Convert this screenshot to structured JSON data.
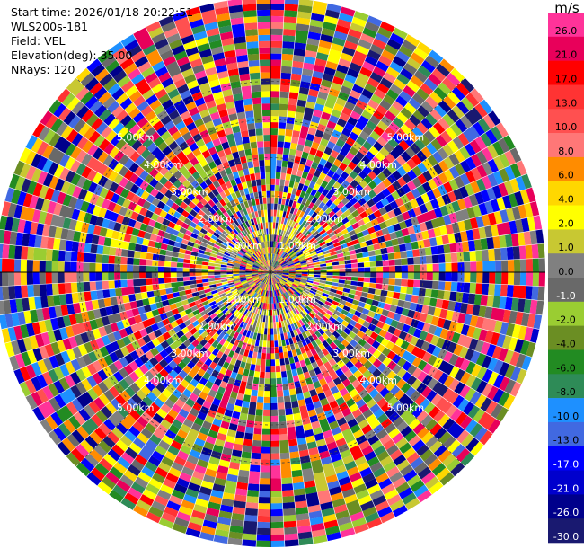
{
  "info": {
    "start_time_label": "Start time:",
    "start_time": "2026/01/18 20:22:51",
    "instrument": "WLS200s-181",
    "field_label": "Field:",
    "field": "VEL",
    "elevation_label": "Elevation(deg):",
    "elevation": "35.00",
    "nrays_label": "NRays:",
    "nrays": "120"
  },
  "colorbar": {
    "unit": "m/s",
    "levels": [
      {
        "label": "26.0",
        "color": "#ff3399"
      },
      {
        "label": "21.0",
        "color": "#e8005a"
      },
      {
        "label": "17.0",
        "color": "#ff0000"
      },
      {
        "label": "13.0",
        "color": "#ff3333"
      },
      {
        "label": "10.0",
        "color": "#ff5050"
      },
      {
        "label": "8.0",
        "color": "#ff7777"
      },
      {
        "label": "6.0",
        "color": "#ff8c00"
      },
      {
        "label": "4.0",
        "color": "#ffd700"
      },
      {
        "label": "2.0",
        "color": "#ffff00"
      },
      {
        "label": "1.0",
        "color": "#c8c832"
      },
      {
        "label": "0.0",
        "color": "#808080"
      },
      {
        "label": "-1.0",
        "color": "#696969"
      },
      {
        "label": "-2.0",
        "color": "#9acd32"
      },
      {
        "label": "-4.0",
        "color": "#6b8e23"
      },
      {
        "label": "-6.0",
        "color": "#228b22"
      },
      {
        "label": "-8.0",
        "color": "#2e8b57"
      },
      {
        "label": "-10.0",
        "color": "#1e90ff"
      },
      {
        "label": "-13.0",
        "color": "#4169e1"
      },
      {
        "label": "-17.0",
        "color": "#0000ff"
      },
      {
        "label": "-21.0",
        "color": "#0000cd"
      },
      {
        "label": "-26.0",
        "color": "#00008b"
      },
      {
        "label": "-30.0",
        "color": "#191970"
      }
    ]
  },
  "chart_data": {
    "type": "heatmap",
    "projection": "polar-ppi",
    "field": "VEL",
    "nrays": 120,
    "range_rings_km": [
      1,
      2,
      3,
      4,
      5
    ],
    "ring_label_strings": [
      "1.00km",
      "2.00km",
      "3.00km",
      "4.00km",
      "5.00km"
    ],
    "max_range_km": 7.2,
    "azimuth_spokes_deg": [
      0,
      45,
      90,
      135,
      180,
      225,
      270,
      315
    ],
    "grid": true
  }
}
